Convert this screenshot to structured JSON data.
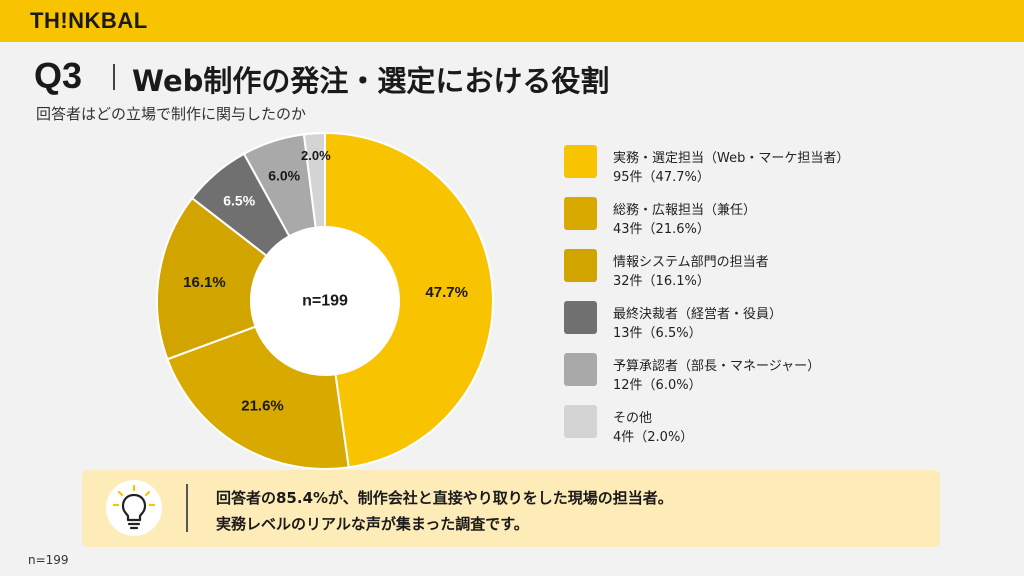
{
  "brand": "TH!NKBAL",
  "question": {
    "number": "Q3",
    "title": "Web制作の発注・選定における役割",
    "subtitle": "回答者はどの立場で制作に関与したのか"
  },
  "legend": [
    {
      "label": "実務・選定担当（Web・マーケ担当者）",
      "count": "95件（47.7%）"
    },
    {
      "label": "総務・広報担当（兼任）",
      "count": "43件（21.6%）"
    },
    {
      "label": "情報システム部門の担当者",
      "count": "32件（16.1%）"
    },
    {
      "label": "最終決裁者（経営者・役員）",
      "count": "13件（6.5%）"
    },
    {
      "label": "予算承認者（部長・マネージャー）",
      "count": "12件（6.0%）"
    },
    {
      "label": "その他",
      "count": "4件（2.0%）"
    }
  ],
  "summary": {
    "line1": "回答者の85.4%が、制作会社と直接やり取りをした現場の担当者。",
    "line2": "実務レベルのリアルな声が集まった調査です。",
    "icon": "lightbulb-icon"
  },
  "footer_note": "n=199",
  "chart_data": {
    "type": "pie",
    "donut": true,
    "center_label": "n=199",
    "categories": [
      "実務・選定担当（Web・マーケ担当者）",
      "総務・広報担当（兼任）",
      "情報システム部門の担当者",
      "最終決裁者（経営者・役員）",
      "予算承認者（部長・マネージャー）",
      "その他"
    ],
    "counts": [
      95,
      43,
      32,
      13,
      12,
      4
    ],
    "values": [
      47.7,
      21.6,
      16.1,
      6.5,
      6.0,
      2.0
    ],
    "data_labels": [
      "47.7%",
      "21.6%",
      "16.1%",
      "6.5%",
      "6.0%",
      "2.0%"
    ],
    "colors": [
      "#f8c300",
      "#d8aa00",
      "#d2a400",
      "#707070",
      "#a9a9a9",
      "#d4d4d4"
    ],
    "label_colors": [
      "#1a1a1a",
      "#1a1a1a",
      "#1a1a1a",
      "#ffffff",
      "#1a1a1a",
      "#1a1a1a"
    ],
    "legend_position": "right"
  },
  "colors": {
    "accent": "#f8c300",
    "background": "#f2f2f2",
    "summary_bg": "#fdebb8"
  }
}
